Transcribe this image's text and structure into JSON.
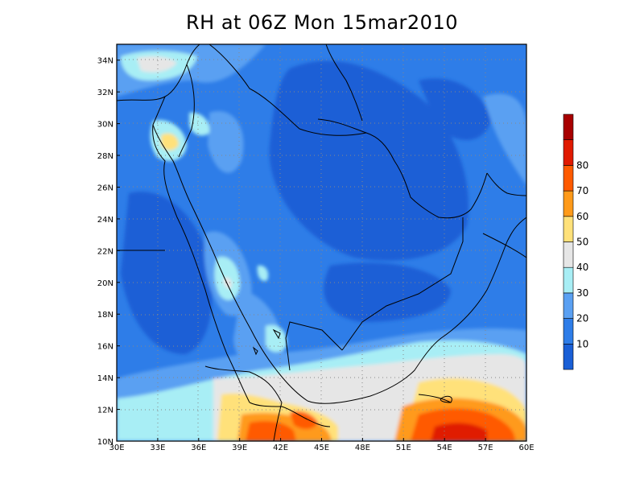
{
  "title": "RH at 06Z Mon 15mar2010",
  "map": {
    "x_range": [
      30,
      60
    ],
    "y_range": [
      10,
      35
    ],
    "x_ticks": [
      "30E",
      "33E",
      "36E",
      "39E",
      "42E",
      "45E",
      "48E",
      "51E",
      "54E",
      "57E",
      "60E"
    ],
    "y_ticks": [
      "10N",
      "12N",
      "14N",
      "16N",
      "18N",
      "20N",
      "22N",
      "24N",
      "26N",
      "28N",
      "30N",
      "32N",
      "34N"
    ],
    "grid": "dotted"
  },
  "colorbar": {
    "labels": [
      "10",
      "20",
      "30",
      "40",
      "50",
      "60",
      "70",
      "80"
    ],
    "colors": [
      "#1a5fd6",
      "#2e7de8",
      "#5aa0f2",
      "#a8eef5",
      "#e6e6e6",
      "#ffe17a",
      "#ff9a1a",
      "#ff5a00",
      "#e01a00",
      "#a80000"
    ]
  }
}
